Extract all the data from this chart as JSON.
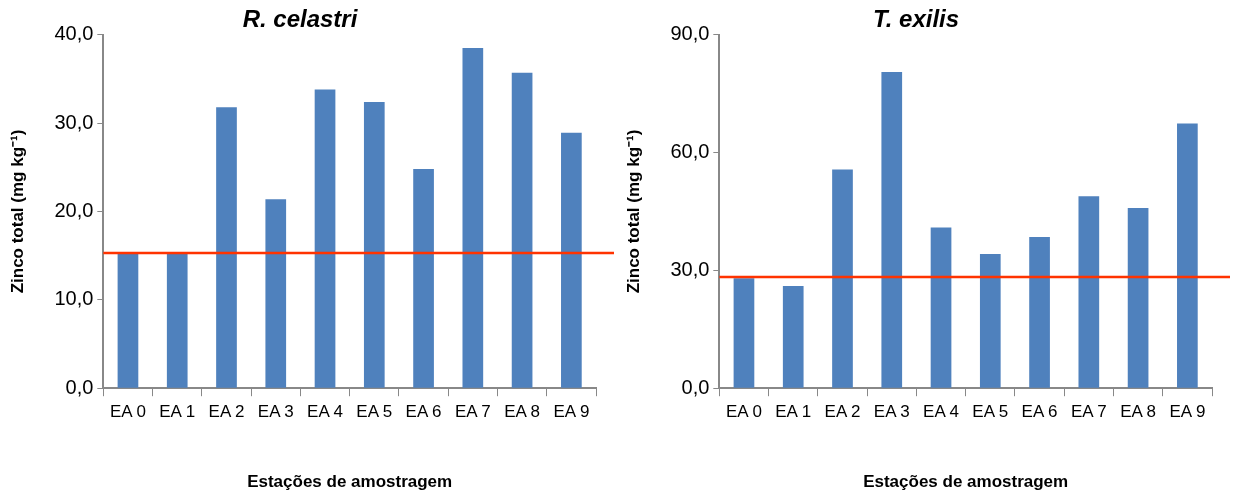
{
  "chart_data": [
    {
      "type": "bar",
      "title": "R. celastri",
      "xlabel": "Estações de amostragem",
      "ylabel": "Zinco total (mg kg⁻¹)",
      "categories": [
        "EA 0",
        "EA 1",
        "EA 2",
        "EA 3",
        "EA 4",
        "EA 5",
        "EA 6",
        "EA 7",
        "EA 8",
        "EA 9"
      ],
      "values": [
        15.3,
        15.3,
        31.8,
        21.4,
        33.8,
        32.4,
        24.8,
        38.5,
        35.7,
        28.9
      ],
      "color": "#4f81bd",
      "ylim": [
        0,
        40
      ],
      "yticks": [
        {
          "value": 0,
          "label": "0,0"
        },
        {
          "value": 10,
          "label": "10,0"
        },
        {
          "value": 20,
          "label": "20,0"
        },
        {
          "value": 30,
          "label": "30,0"
        },
        {
          "value": 40,
          "label": "40,0"
        }
      ],
      "grid": false,
      "legend": false,
      "ref_lines": [
        {
          "axis": "y",
          "value": 15.3,
          "color": "#ff3300"
        }
      ]
    },
    {
      "type": "bar",
      "title": "T. exilis",
      "xlabel": "Estações de amostragem",
      "ylabel": "Zinco total (mg kg⁻¹)",
      "categories": [
        "EA 0",
        "EA 1",
        "EA 2",
        "EA 3",
        "EA 4",
        "EA 5",
        "EA 6",
        "EA 7",
        "EA 8",
        "EA 9"
      ],
      "values": [
        28.0,
        26.0,
        55.7,
        80.5,
        40.9,
        34.2,
        38.5,
        48.9,
        45.9,
        67.4
      ],
      "color": "#4f81bd",
      "ylim": [
        0,
        90
      ],
      "yticks": [
        {
          "value": 0,
          "label": "0,0"
        },
        {
          "value": 30,
          "label": "30,0"
        },
        {
          "value": 60,
          "label": "60,0"
        },
        {
          "value": 90,
          "label": "90,0"
        }
      ],
      "grid": false,
      "legend": false,
      "ref_lines": [
        {
          "axis": "y",
          "value": 28.3,
          "color": "#ff3300"
        }
      ]
    }
  ]
}
